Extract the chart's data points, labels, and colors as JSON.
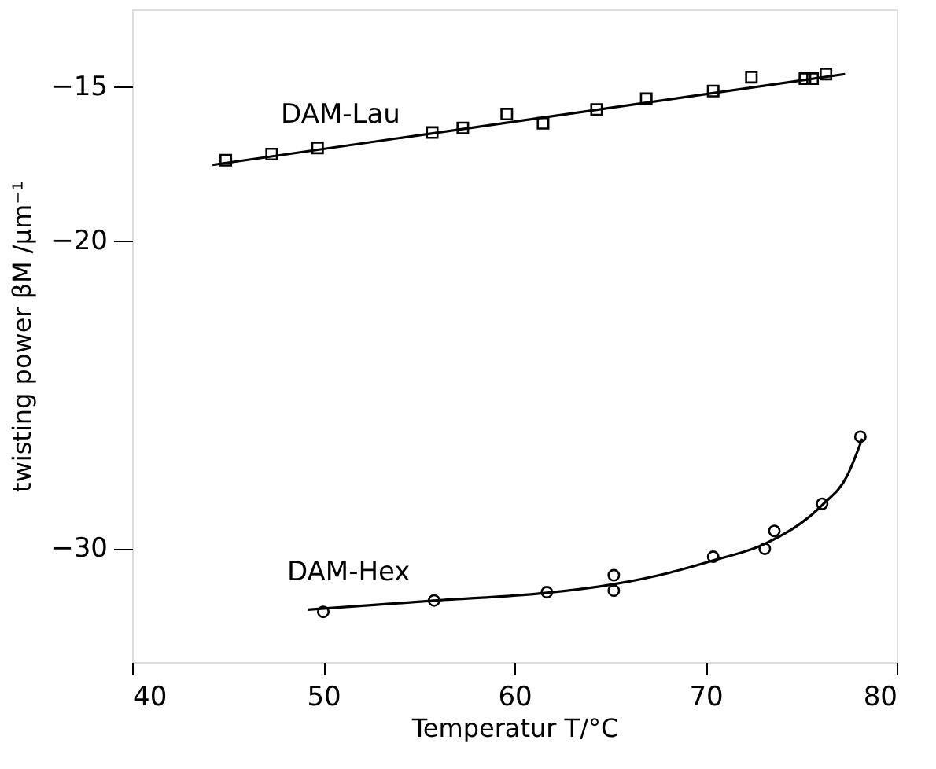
{
  "chart_data": {
    "type": "scatter",
    "xlabel": "Temperatur T/°C",
    "ylabel": "twisting power βM /µm⁻¹",
    "xlim": [
      40,
      80
    ],
    "ylim": [
      -33.7,
      -12.5
    ],
    "xticks": [
      40,
      50,
      60,
      70,
      80
    ],
    "yticks": [
      -15,
      -20,
      -30
    ],
    "grid": false,
    "legend": false,
    "series": [
      {
        "name": "DAM-Lau",
        "marker": "square",
        "color": "#000000",
        "x": [
          44.9,
          47.3,
          49.7,
          55.7,
          57.3,
          59.6,
          61.5,
          64.3,
          66.9,
          70.4,
          72.4,
          75.2,
          75.6,
          76.3
        ],
        "values": [
          -17.4,
          -17.2,
          -17.0,
          -16.5,
          -16.35,
          -15.9,
          -16.2,
          -15.75,
          -15.4,
          -15.15,
          -14.7,
          -14.75,
          -14.75,
          -14.6
        ]
      },
      {
        "type": "line",
        "marker": "none",
        "line_style": "solid",
        "color": "#000000",
        "x": [
          44.2,
          77.3
        ],
        "values": [
          -17.55,
          -14.6
        ]
      },
      {
        "name": "DAM-Hex",
        "marker": "circle",
        "color": "#000000",
        "x": [
          50.0,
          55.8,
          61.7,
          65.2,
          65.2,
          70.4,
          73.1,
          73.6,
          76.1,
          78.1
        ],
        "values": [
          -32.07,
          -31.7,
          -31.43,
          -30.88,
          -31.38,
          -30.28,
          -30.02,
          -29.44,
          -28.56,
          -26.38
        ]
      },
      {
        "type": "line",
        "marker": "none",
        "line_style": "solid",
        "color": "#000000",
        "x": [
          49.2,
          55.9,
          61.7,
          65.2,
          68.1,
          70.4,
          73.1,
          76.1,
          77.4,
          78.2
        ],
        "values": [
          -32.0,
          -31.7,
          -31.45,
          -31.17,
          -30.8,
          -30.4,
          -29.86,
          -28.6,
          -27.66,
          -26.44
        ]
      }
    ]
  }
}
